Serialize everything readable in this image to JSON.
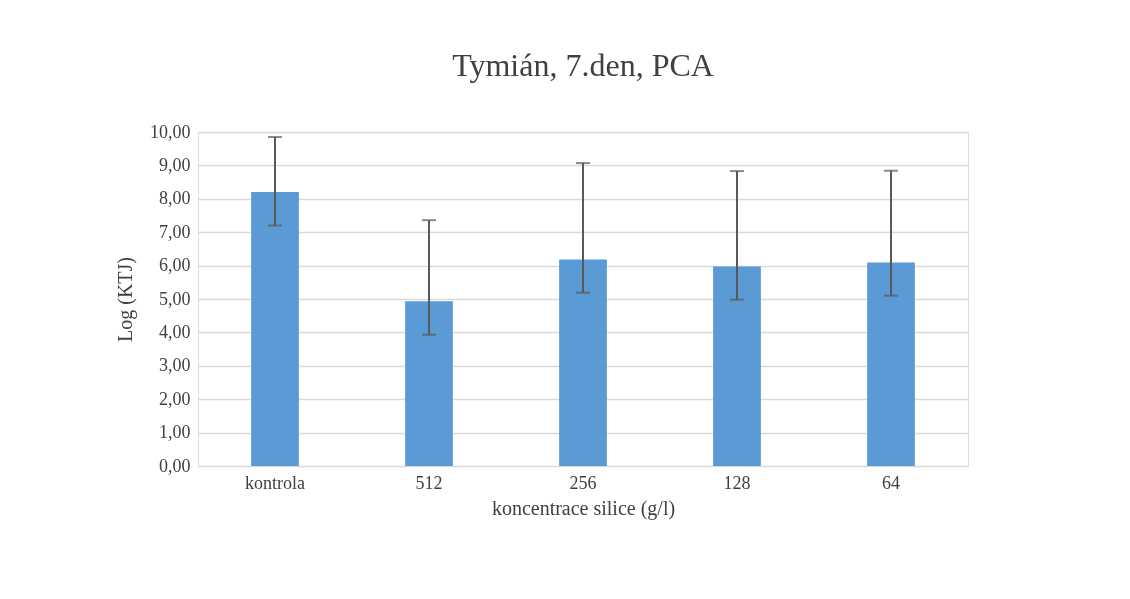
{
  "chart_data": {
    "type": "bar",
    "title": "Tymián, 7.den, PCA",
    "xlabel": "koncentrace silice  (g/l)",
    "ylabel": "Log (KTJ)",
    "categories": [
      "kontrola",
      "512",
      "256",
      "128",
      "64"
    ],
    "values": [
      8.2,
      4.93,
      6.18,
      5.97,
      6.09
    ],
    "errors": [
      [
        7.2,
        9.85
      ],
      [
        3.93,
        7.36
      ],
      [
        5.19,
        9.07
      ],
      [
        4.98,
        8.83
      ],
      [
        5.1,
        8.84
      ]
    ],
    "color": "#5b9bd5",
    "ylim": [
      0,
      10
    ],
    "yticks": [
      {
        "value": 0,
        "label": "0,00"
      },
      {
        "value": 1,
        "label": "1,00"
      },
      {
        "value": 2,
        "label": "2,00"
      },
      {
        "value": 3,
        "label": "3,00"
      },
      {
        "value": 4,
        "label": "4,00"
      },
      {
        "value": 5,
        "label": "5,00"
      },
      {
        "value": 6,
        "label": "6,00"
      },
      {
        "value": 7,
        "label": "7,00"
      },
      {
        "value": 8,
        "label": "8,00"
      },
      {
        "value": 9,
        "label": "9,00"
      },
      {
        "value": 10,
        "label": "10,00"
      }
    ],
    "grid": "y"
  }
}
